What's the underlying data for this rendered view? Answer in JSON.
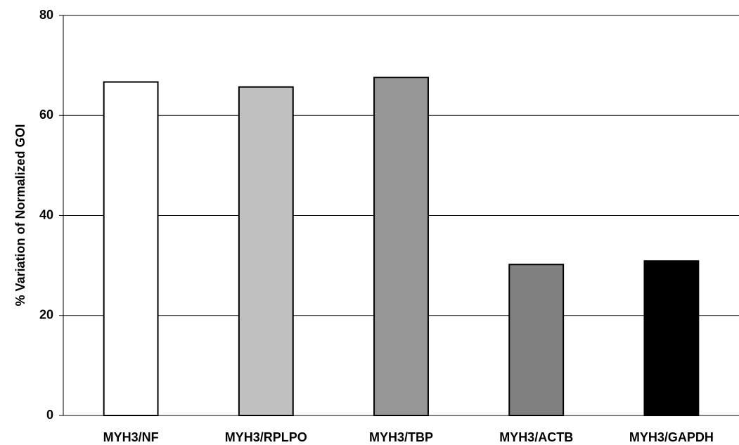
{
  "chart_data": {
    "type": "bar",
    "y_label": "% Variation of Normalized GOI",
    "categories": [
      "MYH3/NF",
      "MYH3/RPLPO",
      "MYH3/TBP",
      "MYH3/ACTB",
      "MYH3/GAPDH"
    ],
    "values": [
      66.7,
      65.7,
      67.6,
      30.2,
      30.9
    ],
    "colors": [
      "#ffffff",
      "#c0c0c0",
      "#969696",
      "#808080",
      "#000000"
    ],
    "ylim": [
      0,
      80
    ],
    "yticks": [
      0,
      20,
      40,
      60,
      80
    ],
    "grid": true
  }
}
